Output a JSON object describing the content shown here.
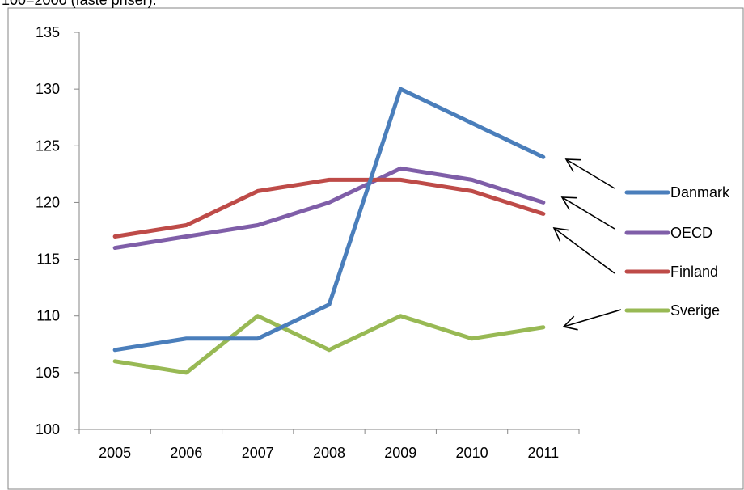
{
  "caption": "100=2000 (faste priser).",
  "chart_data": {
    "type": "line",
    "x": [
      "2005",
      "2006",
      "2007",
      "2008",
      "2009",
      "2010",
      "2011"
    ],
    "ylim": [
      100,
      135
    ],
    "yticks": [
      100,
      105,
      110,
      115,
      120,
      125,
      130,
      135
    ],
    "grid": false,
    "legend_position": "right",
    "series": [
      {
        "name": "Danmark",
        "color": "#4a7ebb",
        "values": [
          107,
          108,
          108,
          111,
          130,
          127,
          124
        ]
      },
      {
        "name": "OECD",
        "color": "#7f5ea8",
        "values": [
          116,
          117,
          118,
          120,
          123,
          122,
          120
        ]
      },
      {
        "name": "Finland",
        "color": "#be4b48",
        "values": [
          117,
          118,
          121,
          122,
          122,
          121,
          119
        ]
      },
      {
        "name": "Sverige",
        "color": "#98b954",
        "values": [
          106,
          105,
          110,
          107,
          110,
          108,
          109
        ]
      }
    ]
  }
}
